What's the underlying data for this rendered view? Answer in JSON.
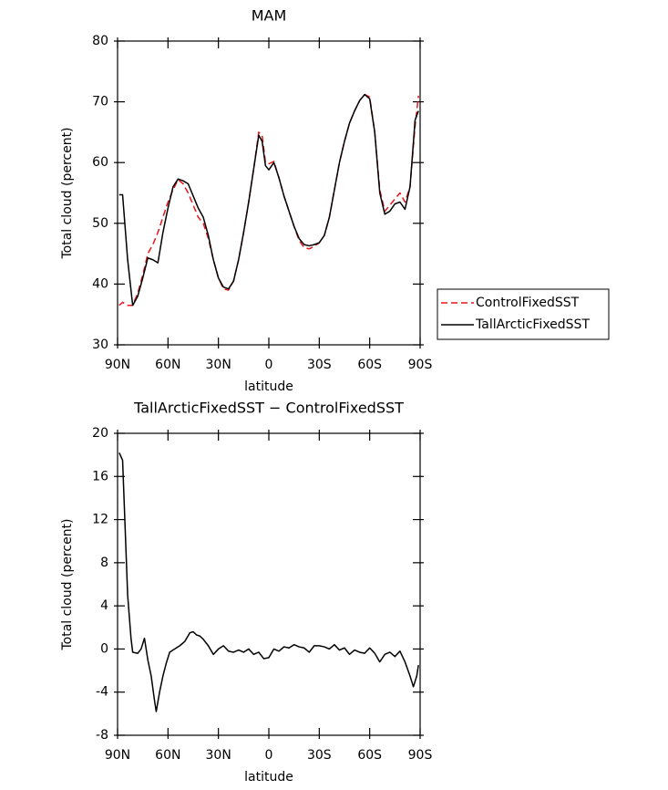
{
  "chart_data": [
    {
      "type": "line",
      "title": "MAM",
      "xlabel": "latitude",
      "ylabel": "Total cloud (percent)",
      "x": [
        89,
        87,
        84,
        81,
        78,
        75,
        72,
        69,
        66,
        63,
        60,
        57,
        54,
        51,
        48,
        45,
        42,
        39,
        36,
        33,
        30,
        27,
        24,
        21,
        18,
        15,
        12,
        9,
        6,
        4,
        2,
        0,
        -3,
        -6,
        -9,
        -12,
        -15,
        -18,
        -21,
        -24,
        -27,
        -30,
        -33,
        -36,
        -39,
        -42,
        -45,
        -48,
        -51,
        -54,
        -57,
        -60,
        -63,
        -66,
        -69,
        -72,
        -75,
        -78,
        -81,
        -84,
        -87,
        -89
      ],
      "xlim": [
        90,
        -90
      ],
      "xticks": [
        {
          "value": 90,
          "label": "90N"
        },
        {
          "value": 60,
          "label": "60N"
        },
        {
          "value": 30,
          "label": "30N"
        },
        0,
        {
          "value": -30,
          "label": "30S"
        },
        {
          "value": -60,
          "label": "60S"
        },
        {
          "value": -90,
          "label": "90S"
        }
      ],
      "ylim": [
        30,
        80
      ],
      "yticks": [
        30,
        40,
        50,
        60,
        70,
        80
      ],
      "legend": "right",
      "series": [
        {
          "name": "ControlFixedSST",
          "color": "#e8161b",
          "linestyle": "dashed",
          "values": [
            36.5,
            37,
            36.5,
            36.5,
            38.5,
            41.5,
            45,
            46.5,
            48.5,
            51,
            53.5,
            55.5,
            57.2,
            56.5,
            55,
            53,
            51,
            50,
            47.5,
            44,
            41,
            39.2,
            39,
            40.5,
            44,
            48.5,
            53.5,
            59,
            65,
            64.5,
            60,
            59.8,
            60.2,
            57.5,
            54.5,
            52,
            49.5,
            47.2,
            46,
            45.8,
            46.2,
            46.8,
            48,
            51,
            55.5,
            60,
            63.5,
            66.5,
            68.5,
            70.2,
            71.2,
            70.8,
            65,
            55.5,
            52,
            53,
            54,
            55,
            53.5,
            56,
            66,
            71
          ]
        },
        {
          "name": "TallArcticFixedSST",
          "color": "#000000",
          "linestyle": "solid",
          "values": [
            54.7,
            54.7,
            44,
            36.5,
            38,
            41,
            44.3,
            44,
            43.5,
            48.5,
            52.5,
            56,
            57.3,
            57,
            56.5,
            54.5,
            52.5,
            51,
            48,
            44,
            41,
            39.5,
            39.2,
            40.5,
            44,
            48.5,
            53.5,
            59,
            64.5,
            63.5,
            59.5,
            58.8,
            60,
            57.5,
            54.5,
            52,
            49.5,
            47.5,
            46.5,
            46.3,
            46.5,
            46.8,
            48,
            51,
            55.5,
            60,
            63.5,
            66.5,
            68.5,
            70.2,
            71.2,
            70.5,
            65,
            55,
            51.5,
            52,
            53.2,
            53.5,
            52.3,
            56,
            67,
            68.5
          ]
        }
      ]
    },
    {
      "type": "line",
      "title": "TallArcticFixedSST − ControlFixedSST",
      "xlabel": "latitude",
      "ylabel": "Total cloud (percent)",
      "x": [
        89,
        87,
        84,
        82,
        81,
        78,
        76,
        74,
        72,
        70,
        68,
        67,
        65,
        63,
        61,
        59,
        56,
        53,
        50,
        47,
        45,
        43,
        41,
        39,
        36,
        33,
        30,
        27,
        24,
        21,
        18,
        15,
        12,
        9,
        6,
        3,
        0,
        -3,
        -6,
        -9,
        -12,
        -15,
        -18,
        -21,
        -24,
        -27,
        -30,
        -33,
        -36,
        -39,
        -42,
        -45,
        -48,
        -51,
        -54,
        -57,
        -60,
        -63,
        -66,
        -69,
        -72,
        -75,
        -78,
        -81,
        -84,
        -86,
        -88,
        -89
      ],
      "xlim": [
        90,
        -90
      ],
      "xticks": [
        {
          "value": 90,
          "label": "90N"
        },
        {
          "value": 60,
          "label": "60N"
        },
        {
          "value": 30,
          "label": "30N"
        },
        0,
        {
          "value": -30,
          "label": "30S"
        },
        {
          "value": -60,
          "label": "60S"
        },
        {
          "value": -90,
          "label": "90S"
        }
      ],
      "ylim": [
        -8,
        20
      ],
      "yticks": [
        -8,
        -4,
        0,
        4,
        8,
        12,
        16,
        20
      ],
      "series": [
        {
          "color": "#000000",
          "linestyle": "solid",
          "values": [
            18.2,
            17.5,
            5,
            1,
            -0.3,
            -0.4,
            0,
            1,
            -1,
            -2.5,
            -4.8,
            -5.8,
            -4,
            -2.5,
            -1.3,
            -0.3,
            0,
            0.3,
            0.7,
            1.5,
            1.6,
            1.3,
            1.2,
            0.9,
            0.3,
            -0.5,
            0,
            0.3,
            -0.2,
            -0.3,
            -0.1,
            -0.3,
            0,
            -0.5,
            -0.3,
            -0.9,
            -0.8,
            0,
            -0.2,
            0.2,
            0.1,
            0.4,
            0.2,
            0.1,
            -0.3,
            0.3,
            0.3,
            0.2,
            0,
            0.4,
            -0.1,
            0.1,
            -0.5,
            -0.1,
            -0.3,
            -0.4,
            0.1,
            -0.4,
            -1.2,
            -0.5,
            -0.3,
            -0.7,
            -0.2,
            -1.2,
            -2.5,
            -3.5,
            -2.5,
            -1.5
          ]
        }
      ]
    }
  ]
}
